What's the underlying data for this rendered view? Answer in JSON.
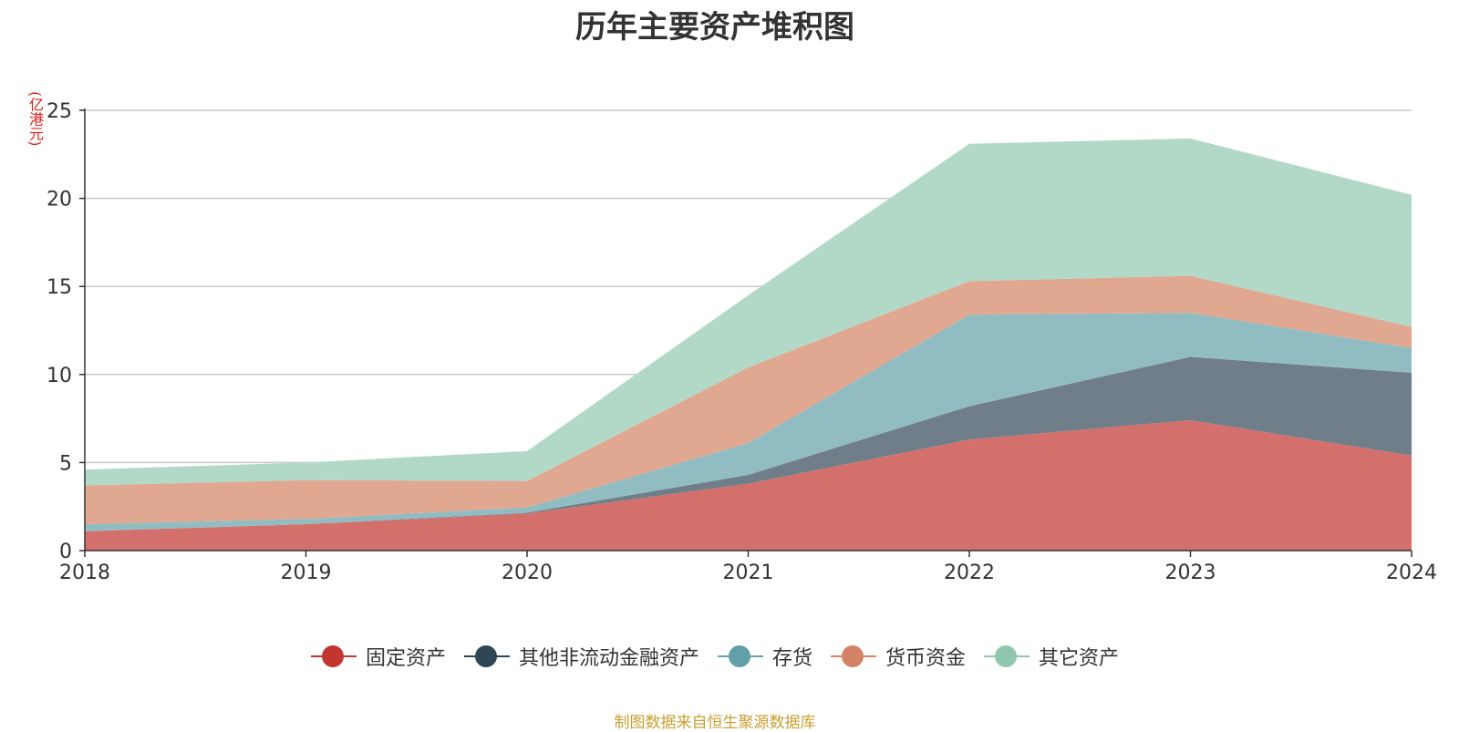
{
  "title": "历年主要资产堆积图",
  "source": "制图数据来自恒生聚源数据库",
  "chart_data": {
    "type": "area",
    "stacked": true,
    "title": "历年主要资产堆积图",
    "unit": "(亿港元)",
    "x": [
      "2018",
      "2019",
      "2020",
      "2021",
      "2022",
      "2023",
      "2024"
    ],
    "ylim": [
      0,
      25
    ],
    "yticks": [
      0,
      5,
      10,
      15,
      20,
      25
    ],
    "grid": true,
    "legend_position": "bottom",
    "series": [
      {
        "name": "固定资产",
        "color": "#c23531",
        "fill": "#d4706c",
        "values": [
          1.1,
          1.5,
          2.1,
          3.8,
          6.3,
          7.4,
          5.4
        ]
      },
      {
        "name": "其他非流动金融资产",
        "color": "#2f4554",
        "fill": "#707e8a",
        "values": [
          0.0,
          0.0,
          0.05,
          0.5,
          1.9,
          3.6,
          4.7
        ]
      },
      {
        "name": "存货",
        "color": "#61a0a8",
        "fill": "#91bdc2",
        "values": [
          0.4,
          0.3,
          0.3,
          1.8,
          5.2,
          2.5,
          1.4
        ]
      },
      {
        "name": "货币资金",
        "color": "#d48265",
        "fill": "#e0a791",
        "values": [
          2.2,
          2.2,
          1.5,
          4.3,
          1.9,
          2.1,
          1.2
        ]
      },
      {
        "name": "其它资产",
        "color": "#91c7ae",
        "fill": "#b2d9c8",
        "values": [
          0.9,
          1.0,
          1.7,
          4.1,
          7.8,
          7.8,
          7.5
        ]
      }
    ]
  }
}
